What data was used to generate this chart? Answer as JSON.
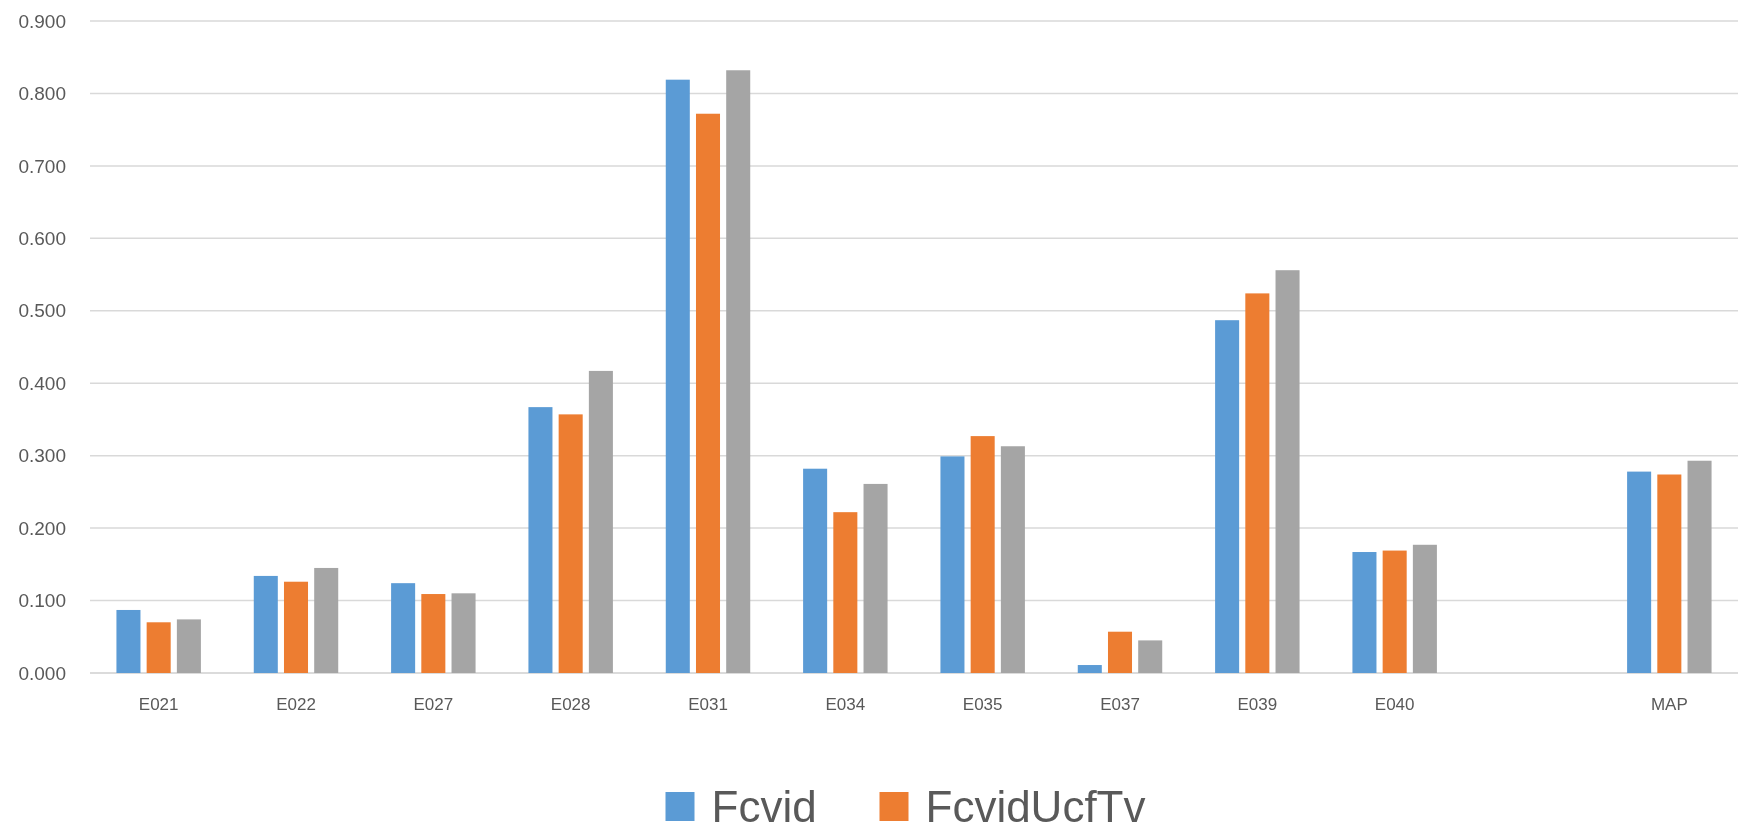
{
  "chart_data": {
    "type": "bar",
    "categories": [
      "E021",
      "E022",
      "E027",
      "E028",
      "E031",
      "E034",
      "E035",
      "E037",
      "E039",
      "E040",
      null,
      "MAP"
    ],
    "series": [
      {
        "name": "Fcvid",
        "color": "#5b9bd5",
        "values": [
          0.087,
          0.134,
          0.124,
          0.367,
          0.819,
          0.282,
          0.299,
          0.011,
          0.487,
          0.167,
          null,
          0.278
        ]
      },
      {
        "name": "FcvidUcfTv",
        "color": "#ed7d31",
        "values": [
          0.07,
          0.126,
          0.109,
          0.357,
          0.772,
          0.222,
          0.327,
          0.057,
          0.524,
          0.169,
          null,
          0.274
        ]
      },
      {
        "color": "#a5a5a5",
        "values": [
          0.074,
          0.145,
          0.11,
          0.417,
          0.832,
          0.261,
          0.313,
          0.045,
          0.556,
          0.177,
          null,
          0.293
        ]
      }
    ],
    "ylim": [
      0,
      0.9
    ],
    "yticks": [
      {
        "value": 0,
        "label": "0.000"
      },
      {
        "value": 0.1,
        "label": "0.100"
      },
      {
        "value": 0.2,
        "label": "0.200"
      },
      {
        "value": 0.3,
        "label": "0.300"
      },
      {
        "value": 0.4,
        "label": "0.400"
      },
      {
        "value": 0.5,
        "label": "0.500"
      },
      {
        "value": 0.6,
        "label": "0.600"
      },
      {
        "value": 0.7,
        "label": "0.700"
      },
      {
        "value": 0.8,
        "label": "0.800"
      },
      {
        "value": 0.9,
        "label": "0.900"
      }
    ],
    "grid": "y",
    "legend": "bottom"
  }
}
